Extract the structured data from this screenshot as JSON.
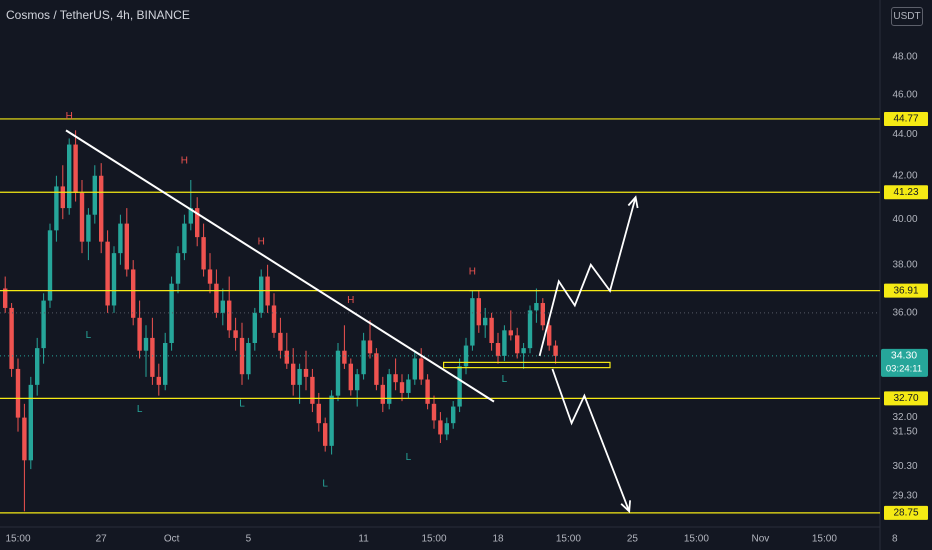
{
  "header": {
    "title": "Cosmos / TetherUS, 4h, BINANCE",
    "currency": "USDT"
  },
  "colors": {
    "background": "#131722",
    "up": "#26a69a",
    "down": "#ef5350",
    "level_line": "#f5ea14",
    "drawing": "#ffffff",
    "axis_text": "#b2b5be",
    "price_badge": "#26a69a",
    "level_badge": "#f5ea14",
    "label_high": "#ef5350",
    "label_low": "#26a69a"
  },
  "chart_data": {
    "type": "candlestick",
    "title": "Cosmos / TetherUS, 4h, BINANCE",
    "ylim": [
      28.4,
      50.5
    ],
    "y_scale": "log",
    "y_ticks": [
      "48.00",
      "46.00",
      "44.00",
      "42.00",
      "40.00",
      "38.00",
      "36.00",
      "32.00",
      "31.50",
      "30.30",
      "29.30"
    ],
    "x_ticks": [
      {
        "label": "15:00",
        "bar": 2
      },
      {
        "label": "27",
        "bar": 15
      },
      {
        "label": "Oct",
        "bar": 26
      },
      {
        "label": "5",
        "bar": 38
      },
      {
        "label": "11",
        "bar": 56
      },
      {
        "label": "15:00",
        "bar": 67
      },
      {
        "label": "18",
        "bar": 77
      },
      {
        "label": "15:00",
        "bar": 88
      },
      {
        "label": "25",
        "bar": 98
      },
      {
        "label": "15:00",
        "bar": 108
      },
      {
        "label": "Nov",
        "bar": 118
      },
      {
        "label": "15:00",
        "bar": 128
      },
      {
        "label": "8",
        "bar": 139
      }
    ],
    "candles": [
      [
        37.0,
        37.5,
        36.0,
        36.2
      ],
      [
        36.2,
        36.4,
        33.5,
        33.8
      ],
      [
        33.8,
        34.2,
        31.5,
        32.0
      ],
      [
        32.0,
        32.5,
        28.8,
        30.5
      ],
      [
        30.5,
        33.5,
        30.2,
        33.2
      ],
      [
        33.2,
        35.0,
        32.8,
        34.6
      ],
      [
        34.6,
        36.8,
        34.0,
        36.5
      ],
      [
        36.5,
        39.8,
        36.2,
        39.5
      ],
      [
        39.5,
        42.0,
        39.0,
        41.5
      ],
      [
        41.5,
        42.5,
        40.0,
        40.5
      ],
      [
        40.5,
        43.8,
        40.2,
        43.5
      ],
      [
        43.5,
        44.2,
        40.8,
        41.2
      ],
      [
        41.2,
        41.8,
        38.5,
        39.0
      ],
      [
        39.0,
        40.5,
        38.2,
        40.2
      ],
      [
        40.2,
        42.5,
        39.8,
        42.0
      ],
      [
        42.0,
        42.6,
        38.5,
        39.0
      ],
      [
        39.0,
        39.5,
        36.0,
        36.3
      ],
      [
        36.3,
        38.8,
        36.0,
        38.5
      ],
      [
        38.5,
        40.2,
        38.0,
        39.8
      ],
      [
        39.8,
        40.5,
        37.5,
        37.8
      ],
      [
        37.8,
        38.2,
        35.5,
        35.8
      ],
      [
        35.8,
        36.5,
        34.2,
        34.5
      ],
      [
        34.5,
        35.5,
        33.5,
        35.0
      ],
      [
        35.0,
        35.8,
        33.2,
        33.5
      ],
      [
        33.5,
        34.0,
        32.8,
        33.2
      ],
      [
        33.2,
        35.2,
        33.0,
        34.8
      ],
      [
        34.8,
        37.5,
        34.5,
        37.2
      ],
      [
        37.2,
        38.8,
        36.8,
        38.5
      ],
      [
        38.5,
        40.2,
        38.2,
        39.8
      ],
      [
        39.8,
        41.8,
        39.5,
        40.5
      ],
      [
        40.5,
        41.0,
        38.8,
        39.2
      ],
      [
        39.2,
        39.8,
        37.5,
        37.8
      ],
      [
        37.8,
        38.5,
        36.8,
        37.2
      ],
      [
        37.2,
        37.8,
        35.8,
        36.0
      ],
      [
        36.0,
        37.0,
        35.5,
        36.5
      ],
      [
        36.5,
        37.5,
        35.0,
        35.3
      ],
      [
        35.3,
        35.8,
        34.5,
        35.0
      ],
      [
        35.0,
        35.6,
        33.2,
        33.6
      ],
      [
        33.6,
        35.0,
        33.4,
        34.8
      ],
      [
        34.8,
        36.2,
        34.5,
        36.0
      ],
      [
        36.0,
        37.8,
        35.8,
        37.5
      ],
      [
        37.5,
        38.0,
        36.0,
        36.3
      ],
      [
        36.3,
        36.8,
        35.0,
        35.2
      ],
      [
        35.2,
        35.8,
        34.2,
        34.5
      ],
      [
        34.5,
        35.2,
        33.8,
        34.0
      ],
      [
        34.0,
        34.6,
        32.8,
        33.2
      ],
      [
        33.2,
        34.0,
        32.5,
        33.8
      ],
      [
        33.8,
        34.5,
        33.0,
        33.5
      ],
      [
        33.5,
        33.8,
        32.2,
        32.5
      ],
      [
        32.5,
        32.9,
        31.5,
        31.8
      ],
      [
        31.8,
        32.0,
        30.8,
        31.0
      ],
      [
        31.0,
        33.0,
        30.7,
        32.8
      ],
      [
        32.8,
        34.8,
        32.6,
        34.5
      ],
      [
        34.5,
        35.5,
        33.8,
        34.0
      ],
      [
        34.0,
        34.2,
        32.8,
        33.0
      ],
      [
        33.0,
        33.8,
        32.4,
        33.6
      ],
      [
        33.6,
        35.2,
        33.4,
        34.9
      ],
      [
        34.9,
        35.7,
        34.2,
        34.4
      ],
      [
        34.4,
        34.6,
        33.0,
        33.2
      ],
      [
        33.2,
        33.5,
        32.2,
        32.5
      ],
      [
        32.5,
        33.8,
        32.3,
        33.6
      ],
      [
        33.6,
        34.2,
        33.0,
        33.3
      ],
      [
        33.3,
        33.6,
        32.6,
        32.9
      ],
      [
        32.9,
        33.6,
        32.7,
        33.4
      ],
      [
        33.4,
        34.5,
        33.2,
        34.2
      ],
      [
        34.2,
        34.6,
        33.2,
        33.4
      ],
      [
        33.4,
        33.6,
        32.3,
        32.5
      ],
      [
        32.5,
        32.8,
        31.6,
        31.9
      ],
      [
        31.9,
        32.2,
        31.1,
        31.4
      ],
      [
        31.4,
        32.0,
        31.2,
        31.8
      ],
      [
        31.8,
        32.6,
        31.6,
        32.4
      ],
      [
        32.4,
        34.2,
        32.2,
        33.9
      ],
      [
        33.9,
        35.0,
        33.6,
        34.7
      ],
      [
        34.7,
        36.9,
        34.5,
        36.6
      ],
      [
        36.6,
        36.9,
        35.2,
        35.5
      ],
      [
        35.5,
        36.2,
        35.0,
        35.8
      ],
      [
        35.8,
        36.0,
        34.5,
        34.8
      ],
      [
        34.8,
        35.2,
        34.0,
        34.3
      ],
      [
        34.3,
        35.5,
        34.1,
        35.3
      ],
      [
        35.3,
        36.1,
        34.9,
        35.1
      ],
      [
        35.1,
        35.4,
        34.2,
        34.4
      ],
      [
        34.4,
        34.8,
        33.8,
        34.6
      ],
      [
        34.6,
        36.3,
        34.4,
        36.1
      ],
      [
        36.1,
        37.0,
        35.6,
        36.4
      ],
      [
        36.4,
        36.6,
        35.3,
        35.5
      ],
      [
        35.5,
        35.8,
        34.5,
        34.7
      ],
      [
        34.7,
        34.9,
        34.0,
        34.3
      ]
    ],
    "horizontal_levels": [
      {
        "price": 44.77,
        "label": "44.77"
      },
      {
        "price": 41.23,
        "label": "41.23"
      },
      {
        "price": 36.91,
        "label": "36.91"
      },
      {
        "price": 32.7,
        "label": "32.70"
      },
      {
        "price": 28.75,
        "label": "28.75"
      }
    ],
    "last_price": {
      "value": 34.3,
      "label": "34.30",
      "countdown": "03:24:11"
    },
    "hl_labels": [
      {
        "text": "H",
        "bar": 10,
        "price": 44.9
      },
      {
        "text": "H",
        "bar": 28,
        "price": 42.7
      },
      {
        "text": "H",
        "bar": 40,
        "price": 39.0
      },
      {
        "text": "H",
        "bar": 54,
        "price": 36.5
      },
      {
        "text": "H",
        "bar": 73,
        "price": 37.7
      },
      {
        "text": "L",
        "bar": 13,
        "price": 35.1
      },
      {
        "text": "L",
        "bar": 21,
        "price": 32.3
      },
      {
        "text": "L",
        "bar": 37,
        "price": 32.5
      },
      {
        "text": "L",
        "bar": 50,
        "price": 29.7
      },
      {
        "text": "L",
        "bar": 63,
        "price": 30.6
      },
      {
        "text": "L",
        "bar": 78,
        "price": 33.4
      }
    ],
    "trendline": {
      "from": {
        "bar": 10,
        "price": 44.2
      },
      "to": {
        "bar": 75,
        "price": 32.8
      }
    },
    "resistance_segment": {
      "from_bar": 73,
      "to_bar": 84,
      "price": 36.91
    },
    "support_box": {
      "from_bar": 69,
      "to_bar": 95,
      "top": 34.05,
      "bottom": 33.85
    },
    "projection_up": [
      {
        "bar": 84,
        "price": 34.3
      },
      {
        "bar": 87,
        "price": 37.3
      },
      {
        "bar": 89.5,
        "price": 36.3
      },
      {
        "bar": 92,
        "price": 38.0
      },
      {
        "bar": 95,
        "price": 36.9
      },
      {
        "bar": 99,
        "price": 41.0
      }
    ],
    "projection_down": [
      {
        "bar": 86,
        "price": 33.8
      },
      {
        "bar": 89,
        "price": 31.8
      },
      {
        "bar": 91,
        "price": 32.8
      },
      {
        "bar": 98,
        "price": 28.8
      }
    ]
  }
}
